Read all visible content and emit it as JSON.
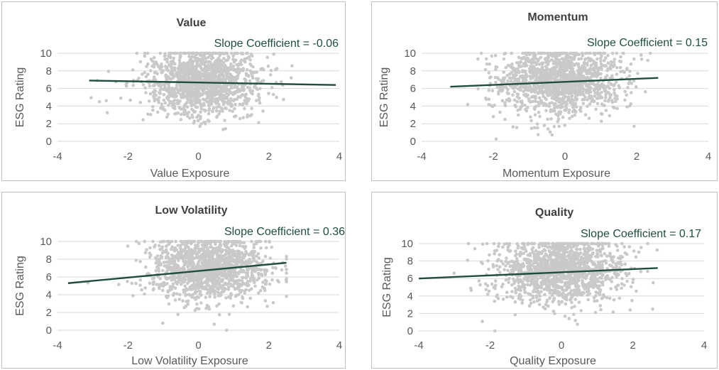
{
  "colors": {
    "points": "#c9c9c9",
    "trend": "#1f4e3d",
    "text": "#595959",
    "title": "#404040",
    "grid": "#d9d9d9",
    "border": "#bfbfbf"
  },
  "chart_data": [
    {
      "type": "scatter",
      "title": "Value",
      "annotation": "Slope Coefficient = -0.06",
      "xlabel": "Value Exposure",
      "ylabel": "ESG Rating",
      "xlim": [
        -4,
        4
      ],
      "ylim": [
        0,
        10
      ],
      "x_ticks": [
        -4,
        -2,
        0,
        2,
        4
      ],
      "y_ticks": [
        0,
        2,
        4,
        6,
        8,
        10
      ],
      "grid": "horizontal",
      "trendline": {
        "x": [
          -3.1,
          3.9
        ],
        "y": [
          6.9,
          6.4
        ]
      },
      "point_cloud": {
        "count": 1400,
        "x_center": 0.1,
        "x_spread": 0.8,
        "x_range": [
          -3.1,
          3.9
        ],
        "y_center": 6.8,
        "y_spread": 1.9
      }
    },
    {
      "type": "scatter",
      "title": "Momentum",
      "annotation": "Slope Coefficient = 0.15",
      "xlabel": "Momentum Exposure",
      "ylabel": "ESG Rating",
      "xlim": [
        -4,
        4
      ],
      "ylim": [
        0,
        10
      ],
      "x_ticks": [
        -4,
        -2,
        0,
        2,
        4
      ],
      "y_ticks": [
        0,
        2,
        4,
        6,
        8,
        10
      ],
      "grid": "horizontal",
      "trendline": {
        "x": [
          -3.2,
          2.6
        ],
        "y": [
          6.2,
          7.2
        ]
      },
      "point_cloud": {
        "count": 1400,
        "x_center": -0.2,
        "x_spread": 0.9,
        "x_range": [
          -3.2,
          2.6
        ],
        "y_center": 6.9,
        "y_spread": 1.9
      }
    },
    {
      "type": "scatter",
      "title": "Low Volatility",
      "annotation": "Slope Coefficient = 0.36",
      "xlabel": "Low Volatility Exposure",
      "ylabel": "ESG Rating",
      "xlim": [
        -4,
        4
      ],
      "ylim": [
        0,
        10
      ],
      "x_ticks": [
        -4,
        -2,
        0,
        2,
        4
      ],
      "y_ticks": [
        0,
        2,
        4,
        6,
        8,
        10
      ],
      "grid": "horizontal",
      "trendline": {
        "x": [
          -3.7,
          2.5
        ],
        "y": [
          5.3,
          7.6
        ]
      },
      "point_cloud": {
        "count": 1400,
        "x_center": 0.3,
        "x_spread": 0.85,
        "x_range": [
          -3.7,
          2.5
        ],
        "y_center": 7.0,
        "y_spread": 1.8
      }
    },
    {
      "type": "scatter",
      "title": "Quality",
      "annotation": "Slope Coefficient = 0.17",
      "xlabel": "Quality Exposure",
      "ylabel": "ESG Rating",
      "xlim": [
        -4,
        4
      ],
      "ylim": [
        0,
        10
      ],
      "x_ticks": [
        -4,
        -2,
        0,
        2,
        4
      ],
      "y_ticks": [
        0,
        2,
        4,
        6,
        8,
        10
      ],
      "grid": "horizontal",
      "trendline": {
        "x": [
          -4.0,
          2.7
        ],
        "y": [
          6.0,
          7.2
        ]
      },
      "point_cloud": {
        "count": 1400,
        "x_center": 0.0,
        "x_spread": 0.9,
        "x_range": [
          -3.6,
          2.7
        ],
        "y_center": 7.0,
        "y_spread": 1.9
      }
    }
  ]
}
